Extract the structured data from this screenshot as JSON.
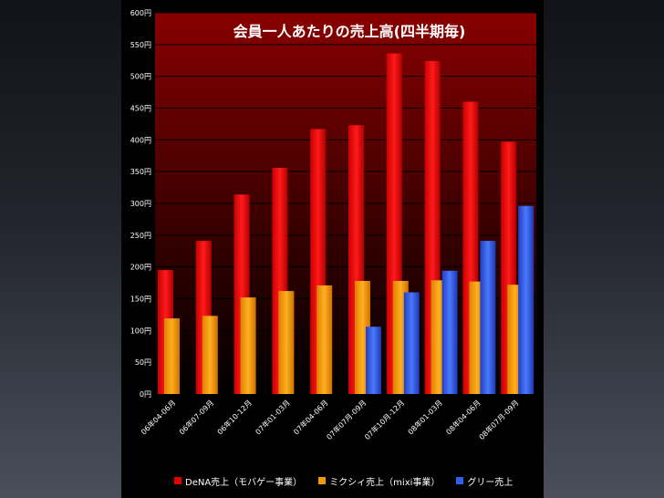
{
  "chart_data": {
    "type": "bar",
    "title": "会員一人あたりの売上高(四半期毎)",
    "categories": [
      "06年04-06月",
      "06年07-09月",
      "06年10-12月",
      "07年01-03月",
      "07年04-06月",
      "07年07月-09月",
      "07年10月-12月",
      "08年01-03月",
      "08年04-06月",
      "08年07月-09月"
    ],
    "series": [
      {
        "name": "DeNA売上（モバゲー事業）",
        "color": "#e60000",
        "values": [
          195,
          241,
          314,
          356,
          417,
          423,
          536,
          524,
          460,
          397
        ]
      },
      {
        "name": "ミクシィ売上（mixi事業）",
        "color": "#f09a00",
        "values": [
          119,
          123,
          152,
          162,
          171,
          178,
          178,
          179,
          177,
          172
        ]
      },
      {
        "name": "グリー売上",
        "color": "#2f5fe8",
        "values": [
          null,
          null,
          null,
          null,
          null,
          106,
          160,
          194,
          241,
          296
        ]
      }
    ],
    "ylim": [
      0,
      600
    ],
    "ytick_labels": [
      "0円",
      "50円",
      "100円",
      "150円",
      "200円",
      "250円",
      "300円",
      "350円",
      "400円",
      "450円",
      "500円",
      "550円",
      "600円"
    ],
    "ytick_values": [
      0,
      50,
      100,
      150,
      200,
      250,
      300,
      350,
      400,
      450,
      500,
      550,
      600
    ],
    "legend_position": "bottom"
  }
}
